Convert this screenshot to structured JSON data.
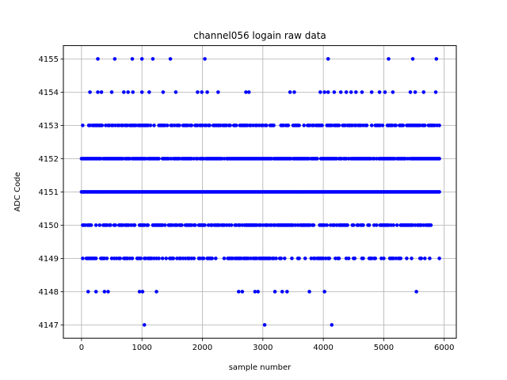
{
  "chart_data": {
    "type": "scatter",
    "title": "channel056 logain raw data",
    "xlabel": "sample number",
    "ylabel": "ADC Code",
    "xlim": [
      -300,
      6200
    ],
    "ylim": [
      4146.6,
      4155.4
    ],
    "xticks": [
      0,
      1000,
      2000,
      3000,
      4000,
      5000,
      6000
    ],
    "yticks": [
      4147,
      4148,
      4149,
      4150,
      4151,
      4152,
      4153,
      4154,
      4155
    ],
    "grid": true,
    "marker_color": "#0000ff",
    "series": [
      {
        "points": [
          [
            1040,
            4147
          ],
          [
            3030,
            4147
          ],
          [
            4140,
            4147
          ],
          [
            110,
            4148
          ],
          [
            240,
            4148
          ],
          [
            380,
            4148
          ],
          [
            440,
            4148
          ],
          [
            960,
            4148
          ],
          [
            1010,
            4148
          ],
          [
            1240,
            4148
          ],
          [
            2600,
            4148
          ],
          [
            2660,
            4148
          ],
          [
            2870,
            4148
          ],
          [
            2920,
            4148
          ],
          [
            3200,
            4148
          ],
          [
            3320,
            4148
          ],
          [
            3400,
            4148
          ],
          [
            3770,
            4148
          ],
          [
            4020,
            4148
          ],
          [
            5540,
            4148
          ],
          [
            140,
            4154
          ],
          [
            270,
            4154
          ],
          [
            330,
            4154
          ],
          [
            500,
            4154
          ],
          [
            700,
            4154
          ],
          [
            770,
            4154
          ],
          [
            850,
            4154
          ],
          [
            1000,
            4154
          ],
          [
            1120,
            4154
          ],
          [
            1350,
            4154
          ],
          [
            1560,
            4154
          ],
          [
            1920,
            4154
          ],
          [
            1990,
            4154
          ],
          [
            2080,
            4154
          ],
          [
            2260,
            4154
          ],
          [
            2720,
            4154
          ],
          [
            2770,
            4154
          ],
          [
            3450,
            4154
          ],
          [
            3520,
            4154
          ],
          [
            3950,
            4154
          ],
          [
            4020,
            4154
          ],
          [
            4080,
            4154
          ],
          [
            4180,
            4154
          ],
          [
            4290,
            4154
          ],
          [
            4380,
            4154
          ],
          [
            4460,
            4154
          ],
          [
            4540,
            4154
          ],
          [
            4640,
            4154
          ],
          [
            4800,
            4154
          ],
          [
            4930,
            4154
          ],
          [
            5020,
            4154
          ],
          [
            5150,
            4154
          ],
          [
            5440,
            4154
          ],
          [
            5520,
            4154
          ],
          [
            5660,
            4154
          ],
          [
            5860,
            4154
          ],
          [
            270,
            4155
          ],
          [
            550,
            4155
          ],
          [
            840,
            4155
          ],
          [
            1000,
            4155
          ],
          [
            1180,
            4155
          ],
          [
            1470,
            4155
          ],
          [
            2040,
            4155
          ],
          [
            4080,
            4155
          ],
          [
            5080,
            4155
          ],
          [
            5480,
            4155
          ],
          [
            5870,
            4155
          ]
        ],
        "dense_levels": [
          {
            "y": 4149,
            "x_min": 0,
            "x_max": 5920,
            "density": 0.5
          },
          {
            "y": 4150,
            "x_min": 0,
            "x_max": 5800,
            "density": 0.7
          },
          {
            "y": 4151,
            "x_min": 0,
            "x_max": 5920,
            "density": 1
          },
          {
            "y": 4152,
            "x_min": 0,
            "x_max": 5920,
            "density": 0.9
          },
          {
            "y": 4153,
            "x_min": 0,
            "x_max": 5920,
            "density": 0.7
          }
        ]
      }
    ]
  }
}
